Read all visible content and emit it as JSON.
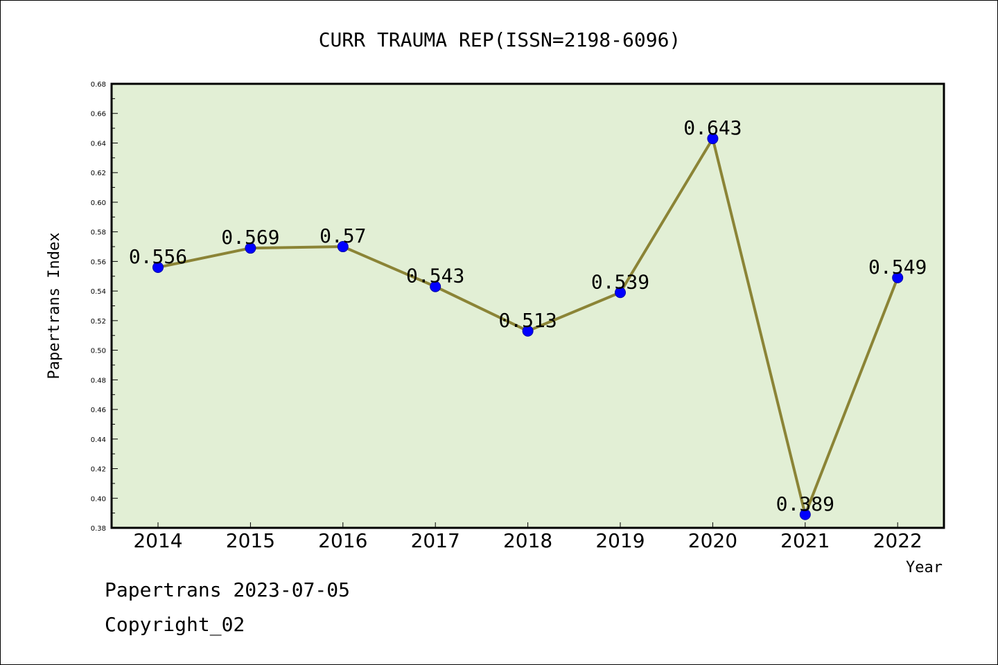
{
  "chart_data": {
    "type": "line",
    "title": "CURR TRAUMA REP(ISSN=2198-6096)",
    "xlabel": "Year",
    "ylabel": "Papertrans Index",
    "categories": [
      "2014",
      "2015",
      "2016",
      "2017",
      "2018",
      "2019",
      "2020",
      "2021",
      "2022"
    ],
    "series": [
      {
        "values": [
          0.556,
          0.569,
          0.57,
          0.543,
          0.513,
          0.539,
          0.643,
          0.389,
          0.549
        ],
        "labels": [
          "0.556",
          "0.569",
          "0.57",
          "0.543",
          "0.513",
          "0.539",
          "0.643",
          "0.389",
          "0.549"
        ]
      }
    ],
    "ylim": [
      0.38,
      0.68
    ],
    "yticks": [
      "0.38",
      "0.40",
      "0.42",
      "0.44",
      "0.46",
      "0.48",
      "0.50",
      "0.52",
      "0.54",
      "0.56",
      "0.58",
      "0.60",
      "0.62",
      "0.64",
      "0.66",
      "0.68"
    ],
    "grid": false,
    "colors": {
      "plot_background": "#e2efd5",
      "line": "#8b8436",
      "marker": "#0000ff"
    }
  },
  "footer": {
    "line1": "Papertrans 2023-07-05",
    "line2": "Copyright_02"
  }
}
